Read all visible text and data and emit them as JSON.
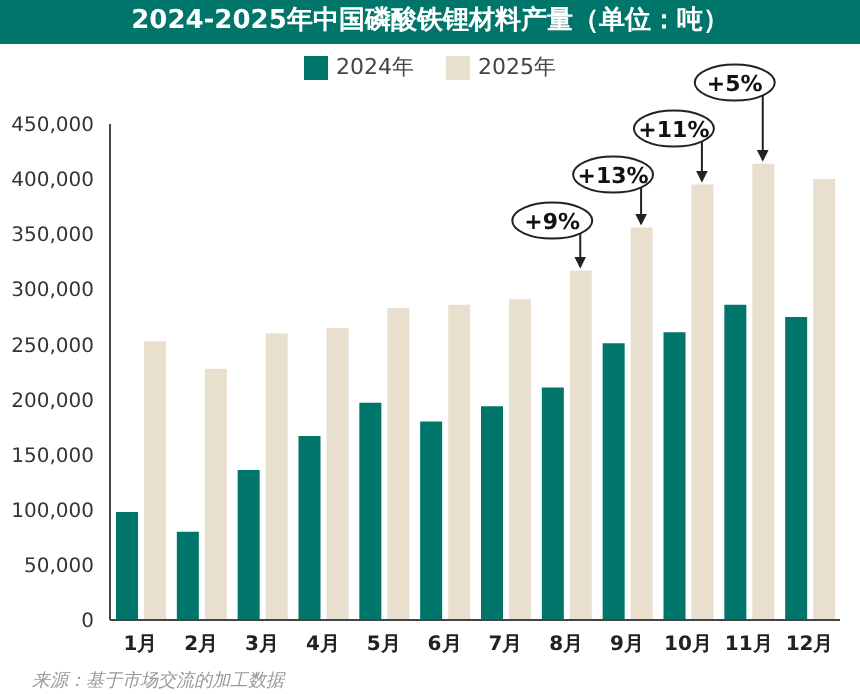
{
  "chart_data": {
    "type": "bar",
    "title": "2024-2025年中国磷酸铁锂材料产量（单位：吨）",
    "categories": [
      "1月",
      "2月",
      "3月",
      "4月",
      "5月",
      "6月",
      "7月",
      "8月",
      "9月",
      "10月",
      "11月",
      "12月"
    ],
    "series": [
      {
        "name": "2024年",
        "color": "#00756a",
        "values": [
          98000,
          80000,
          136000,
          167000,
          197000,
          180000,
          194000,
          211000,
          251000,
          261000,
          286000,
          275000
        ]
      },
      {
        "name": "2025年",
        "color": "#e8dfcf",
        "values": [
          253000,
          228000,
          260000,
          265000,
          283000,
          286000,
          291000,
          317000,
          356000,
          395000,
          414000,
          400000
        ]
      }
    ],
    "ylim": [
      0,
      450000
    ],
    "yticks": [
      0,
      {
        "value": 50000,
        "label": "50,000"
      },
      {
        "value": 100000,
        "label": "100,000"
      },
      {
        "value": 150000,
        "label": "150,000"
      },
      {
        "value": 200000,
        "label": "200,000"
      },
      {
        "value": 250000,
        "label": "250,000"
      },
      {
        "value": 300000,
        "label": "300,000"
      },
      {
        "value": 350000,
        "label": "350,000"
      },
      {
        "value": 400000,
        "label": "400,000"
      },
      {
        "value": 450000,
        "label": "450,000"
      }
    ],
    "grid": false,
    "legend": "top",
    "annotations": [
      {
        "text": "+9%",
        "x": "8月",
        "y": 317000
      },
      {
        "text": "+13%",
        "x": "9月",
        "y": 356000
      },
      {
        "text": "+11%",
        "x": "10月",
        "y": 395000
      },
      {
        "text": "+5%",
        "x": "11月",
        "y": 414000
      },
      "来源：基于市场交流的加工数据"
    ]
  }
}
